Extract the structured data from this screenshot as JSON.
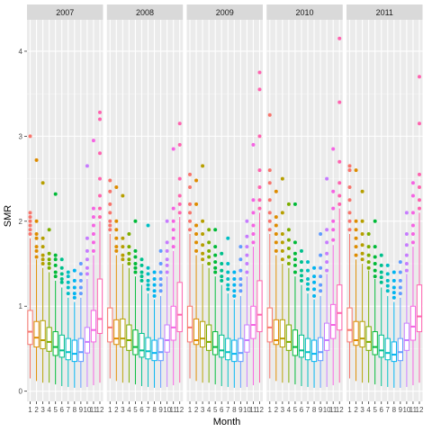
{
  "chart_data": {
    "type": "box",
    "facets": [
      "2007",
      "2008",
      "2009",
      "2010",
      "2011"
    ],
    "xlabel": "Month",
    "ylabel": "SMR",
    "x_tick_labels": [
      "1",
      "2",
      "3",
      "4",
      "5",
      "6",
      "7",
      "8",
      "9",
      "10",
      "11",
      "12"
    ],
    "y_ticks": [
      0,
      1,
      2,
      3,
      4
    ],
    "ylim": [
      -0.12,
      4.37
    ],
    "grid": true,
    "legend": "none",
    "colors": [
      "#F8766D",
      "#DE8C00",
      "#B79F00",
      "#7CAE00",
      "#00BA38",
      "#00C08B",
      "#00BFC4",
      "#00B4F0",
      "#619CFF",
      "#C77CFF",
      "#F564E3",
      "#FF64B0"
    ],
    "stats_columns": [
      "whisker_low",
      "q1",
      "median",
      "q3",
      "whisker_high"
    ],
    "panels": [
      {
        "facet": "2007",
        "boxes": [
          [
            0.15,
            0.55,
            0.7,
            0.95,
            1.8
          ],
          [
            0.12,
            0.52,
            0.63,
            0.82,
            1.55
          ],
          [
            0.1,
            0.5,
            0.6,
            0.83,
            1.45
          ],
          [
            0.1,
            0.47,
            0.58,
            0.75,
            1.4
          ],
          [
            0.08,
            0.42,
            0.52,
            0.7,
            1.3
          ],
          [
            0.06,
            0.4,
            0.48,
            0.66,
            1.22
          ],
          [
            0.05,
            0.37,
            0.46,
            0.62,
            1.1
          ],
          [
            0.04,
            0.35,
            0.44,
            0.6,
            1.05
          ],
          [
            0.04,
            0.35,
            0.46,
            0.62,
            1.1
          ],
          [
            0.05,
            0.45,
            0.58,
            0.75,
            1.32
          ],
          [
            0.07,
            0.58,
            0.72,
            0.95,
            1.6
          ],
          [
            0.1,
            0.68,
            0.85,
            1.32,
            2.0
          ]
        ],
        "outliers": [
          [
            1.85,
            1.9,
            1.95,
            2.0,
            2.05,
            2.1,
            3.0
          ],
          [
            1.58,
            1.65,
            1.7,
            1.8,
            1.85,
            2.0,
            2.72
          ],
          [
            1.5,
            1.55,
            1.6,
            1.7,
            1.8,
            2.45
          ],
          [
            1.45,
            1.5,
            1.55,
            1.62,
            1.9
          ],
          [
            1.35,
            1.4,
            1.48,
            1.55,
            1.6,
            2.32
          ],
          [
            1.28,
            1.32,
            1.38,
            1.45,
            1.55
          ],
          [
            1.15,
            1.22,
            1.28,
            1.35,
            1.4
          ],
          [
            1.1,
            1.15,
            1.22,
            1.3,
            1.42
          ],
          [
            1.15,
            1.22,
            1.3,
            1.38,
            1.5
          ],
          [
            1.38,
            1.45,
            1.55,
            1.65,
            1.8,
            2.65
          ],
          [
            1.65,
            1.75,
            1.85,
            1.95,
            2.05,
            2.15,
            2.95
          ],
          [
            2.05,
            2.15,
            2.3,
            2.5,
            2.8,
            3.2,
            3.28
          ]
        ]
      },
      {
        "facet": "2008",
        "boxes": [
          [
            0.15,
            0.58,
            0.75,
            0.98,
            1.85
          ],
          [
            0.12,
            0.55,
            0.62,
            0.84,
            1.6
          ],
          [
            0.1,
            0.52,
            0.62,
            0.85,
            1.5
          ],
          [
            0.1,
            0.48,
            0.6,
            0.78,
            1.45
          ],
          [
            0.08,
            0.43,
            0.52,
            0.72,
            1.35
          ],
          [
            0.06,
            0.4,
            0.48,
            0.68,
            1.25
          ],
          [
            0.05,
            0.38,
            0.47,
            0.63,
            1.15
          ],
          [
            0.04,
            0.36,
            0.45,
            0.6,
            1.08
          ],
          [
            0.04,
            0.36,
            0.46,
            0.62,
            1.12
          ],
          [
            0.05,
            0.46,
            0.6,
            0.78,
            1.35
          ],
          [
            0.07,
            0.6,
            0.75,
            1.0,
            1.65
          ],
          [
            0.1,
            0.7,
            0.9,
            1.28,
            2.05
          ]
        ],
        "outliers": [
          [
            1.9,
            1.95,
            2.0,
            2.1,
            2.2,
            2.35,
            2.48
          ],
          [
            1.65,
            1.7,
            1.8,
            1.9,
            2.0,
            2.4
          ],
          [
            1.55,
            1.6,
            1.7,
            1.8,
            2.3
          ],
          [
            1.5,
            1.55,
            1.62,
            1.7,
            1.85
          ],
          [
            1.4,
            1.45,
            1.5,
            1.58,
            1.65,
            2.0
          ],
          [
            1.3,
            1.35,
            1.4,
            1.48,
            1.55
          ],
          [
            1.2,
            1.25,
            1.3,
            1.38,
            1.45,
            1.95
          ],
          [
            1.12,
            1.18,
            1.25,
            1.32,
            1.4
          ],
          [
            1.18,
            1.25,
            1.32,
            1.4,
            1.5,
            1.65
          ],
          [
            1.4,
            1.48,
            1.55,
            1.65,
            1.75,
            2.0
          ],
          [
            1.7,
            1.8,
            1.9,
            2.0,
            2.15,
            2.85
          ],
          [
            2.1,
            2.2,
            2.3,
            2.5,
            2.9,
            3.15
          ]
        ]
      },
      {
        "facet": "2009",
        "boxes": [
          [
            0.15,
            0.58,
            0.75,
            1.0,
            1.85
          ],
          [
            0.12,
            0.55,
            0.6,
            0.85,
            1.6
          ],
          [
            0.1,
            0.52,
            0.62,
            0.82,
            1.5
          ],
          [
            0.1,
            0.48,
            0.58,
            0.78,
            1.45
          ],
          [
            0.08,
            0.43,
            0.52,
            0.7,
            1.35
          ],
          [
            0.06,
            0.4,
            0.48,
            0.66,
            1.25
          ],
          [
            0.05,
            0.37,
            0.46,
            0.62,
            1.15
          ],
          [
            0.04,
            0.35,
            0.44,
            0.6,
            1.08
          ],
          [
            0.04,
            0.35,
            0.45,
            0.62,
            1.12
          ],
          [
            0.05,
            0.46,
            0.6,
            0.78,
            1.35
          ],
          [
            0.07,
            0.62,
            0.78,
            1.0,
            1.7
          ],
          [
            0.1,
            0.7,
            0.9,
            1.3,
            2.1
          ]
        ],
        "outliers": [
          [
            1.9,
            2.0,
            2.1,
            2.2,
            2.4,
            2.55
          ],
          [
            1.65,
            1.75,
            1.85,
            1.95,
            2.2,
            2.48
          ],
          [
            1.55,
            1.62,
            1.72,
            1.85,
            2.0,
            2.65
          ],
          [
            1.5,
            1.58,
            1.65,
            1.75,
            1.9
          ],
          [
            1.4,
            1.45,
            1.52,
            1.6,
            1.7,
            1.9
          ],
          [
            1.3,
            1.35,
            1.42,
            1.5,
            1.62
          ],
          [
            1.2,
            1.25,
            1.32,
            1.4,
            1.5,
            1.8
          ],
          [
            1.12,
            1.18,
            1.25,
            1.32,
            1.4
          ],
          [
            1.18,
            1.25,
            1.32,
            1.42,
            1.55,
            1.7
          ],
          [
            1.4,
            1.5,
            1.6,
            1.7,
            1.82,
            2.0
          ],
          [
            1.75,
            1.85,
            1.95,
            2.1,
            2.25,
            2.9
          ],
          [
            2.15,
            2.25,
            2.4,
            2.6,
            3.0,
            3.55,
            3.75
          ]
        ]
      },
      {
        "facet": "2010",
        "boxes": [
          [
            0.15,
            0.58,
            0.75,
            0.98,
            1.85
          ],
          [
            0.12,
            0.55,
            0.6,
            0.84,
            1.6
          ],
          [
            0.1,
            0.52,
            0.62,
            0.84,
            1.5
          ],
          [
            0.1,
            0.48,
            0.58,
            0.78,
            1.45
          ],
          [
            0.08,
            0.42,
            0.52,
            0.72,
            1.35
          ],
          [
            0.06,
            0.4,
            0.48,
            0.66,
            1.25
          ],
          [
            0.05,
            0.37,
            0.46,
            0.62,
            1.15
          ],
          [
            0.04,
            0.35,
            0.44,
            0.6,
            1.08
          ],
          [
            0.04,
            0.36,
            0.46,
            0.63,
            1.12
          ],
          [
            0.05,
            0.48,
            0.6,
            0.8,
            1.38
          ],
          [
            0.07,
            0.62,
            0.78,
            1.02,
            1.72
          ],
          [
            0.1,
            0.72,
            0.92,
            1.25,
            2.15
          ]
        ],
        "outliers": [
          [
            1.9,
            2.0,
            2.1,
            2.25,
            2.45,
            2.6,
            3.25
          ],
          [
            1.65,
            1.75,
            1.85,
            1.95,
            2.05,
            2.35
          ],
          [
            1.55,
            1.65,
            1.75,
            1.85,
            2.1,
            2.5
          ],
          [
            1.5,
            1.58,
            1.68,
            1.78,
            1.9,
            2.2
          ],
          [
            1.4,
            1.48,
            1.55,
            1.62,
            1.75,
            2.2
          ],
          [
            1.3,
            1.36,
            1.42,
            1.52,
            1.65
          ],
          [
            1.2,
            1.26,
            1.32,
            1.42,
            1.52
          ],
          [
            1.12,
            1.2,
            1.28,
            1.35,
            1.45
          ],
          [
            1.18,
            1.25,
            1.35,
            1.45,
            1.6,
            1.85
          ],
          [
            1.42,
            1.52,
            1.62,
            1.75,
            1.9,
            2.5
          ],
          [
            1.78,
            1.9,
            2.0,
            2.15,
            2.35,
            2.85
          ],
          [
            2.2,
            2.3,
            2.45,
            2.7,
            3.4,
            4.15
          ]
        ]
      },
      {
        "facet": "2011",
        "boxes": [
          [
            0.15,
            0.58,
            0.72,
            0.98,
            1.85
          ],
          [
            0.12,
            0.54,
            0.6,
            0.82,
            1.55
          ],
          [
            0.1,
            0.52,
            0.62,
            0.82,
            1.5
          ],
          [
            0.1,
            0.48,
            0.58,
            0.76,
            1.42
          ],
          [
            0.08,
            0.43,
            0.52,
            0.7,
            1.32
          ],
          [
            0.06,
            0.4,
            0.48,
            0.66,
            1.22
          ],
          [
            0.05,
            0.37,
            0.45,
            0.62,
            1.12
          ],
          [
            0.04,
            0.35,
            0.43,
            0.58,
            1.05
          ],
          [
            0.04,
            0.36,
            0.46,
            0.62,
            1.1
          ],
          [
            0.05,
            0.48,
            0.6,
            0.8,
            1.38
          ],
          [
            0.07,
            0.6,
            0.76,
            1.0,
            1.7
          ],
          [
            0.1,
            0.7,
            0.88,
            1.25,
            2.1
          ]
        ],
        "outliers": [
          [
            1.9,
            2.0,
            2.1,
            2.25,
            2.4,
            2.6,
            2.65
          ],
          [
            1.6,
            1.7,
            1.8,
            1.9,
            2.0,
            2.6
          ],
          [
            1.55,
            1.62,
            1.72,
            1.85,
            2.0,
            2.35
          ],
          [
            1.45,
            1.52,
            1.6,
            1.7,
            1.85
          ],
          [
            1.35,
            1.42,
            1.5,
            1.58,
            1.7,
            2.0
          ],
          [
            1.28,
            1.34,
            1.4,
            1.48,
            1.6
          ],
          [
            1.18,
            1.24,
            1.3,
            1.38,
            1.48
          ],
          [
            1.1,
            1.16,
            1.22,
            1.3,
            1.4
          ],
          [
            1.15,
            1.22,
            1.3,
            1.4,
            1.52
          ],
          [
            1.42,
            1.5,
            1.6,
            1.72,
            1.85,
            2.1
          ],
          [
            1.75,
            1.85,
            1.95,
            2.1,
            2.3,
            2.45
          ],
          [
            2.15,
            2.25,
            2.4,
            2.55,
            3.15,
            3.7
          ]
        ]
      }
    ]
  }
}
